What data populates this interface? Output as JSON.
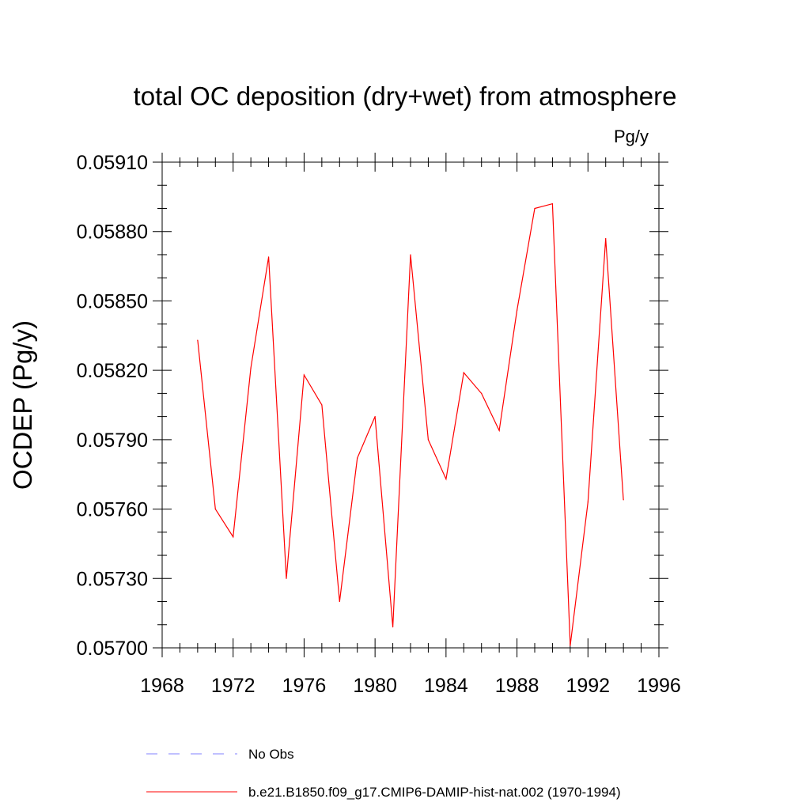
{
  "chart_data": {
    "type": "line",
    "title": "total OC deposition (dry+wet) from atmosphere",
    "units": "Pg/y",
    "ylabel": "OCDEP  (Pg/y)",
    "xlabel": "",
    "xlim": [
      1968,
      1996
    ],
    "ylim": [
      0.057,
      0.0591
    ],
    "x_ticks": [
      1968,
      1972,
      1976,
      1980,
      1984,
      1988,
      1992,
      1996
    ],
    "x_tick_labels": [
      "1968",
      "1972",
      "1976",
      "1980",
      "1984",
      "1988",
      "1992",
      "1996"
    ],
    "y_ticks": [
      0.057,
      0.0573,
      0.0576,
      0.0579,
      0.0582,
      0.0585,
      0.0588,
      0.0591
    ],
    "y_tick_labels": [
      "0.05700",
      "0.05730",
      "0.05760",
      "0.05790",
      "0.05820",
      "0.05850",
      "0.05880",
      "0.05910"
    ],
    "grid": false,
    "legend_position": "bottom",
    "series": [
      {
        "name": "b.e21.B1850.f09_g17.CMIP6-DAMIP-hist-nat.002 (1970-1994)",
        "color": "#ff0000",
        "style": "solid",
        "x": [
          1970,
          1971,
          1972,
          1973,
          1974,
          1975,
          1976,
          1977,
          1978,
          1979,
          1980,
          1981,
          1982,
          1983,
          1984,
          1985,
          1986,
          1987,
          1988,
          1989,
          1990,
          1991,
          1992,
          1993,
          1994
        ],
        "values": [
          0.05833,
          0.0576,
          0.05748,
          0.05821,
          0.05869,
          0.0573,
          0.05818,
          0.05805,
          0.0572,
          0.05782,
          0.058,
          0.05709,
          0.0587,
          0.0579,
          0.05773,
          0.05819,
          0.0581,
          0.05794,
          0.05846,
          0.0589,
          0.05892,
          0.05701,
          0.05763,
          0.05877,
          0.05764
        ]
      }
    ],
    "legend": [
      {
        "label": "No Obs",
        "color": "#8080ff",
        "style": "dashed"
      },
      {
        "label": "b.e21.B1850.f09_g17.CMIP6-DAMIP-hist-nat.002 (1970-1994)",
        "color": "#ff0000",
        "style": "solid"
      }
    ]
  }
}
